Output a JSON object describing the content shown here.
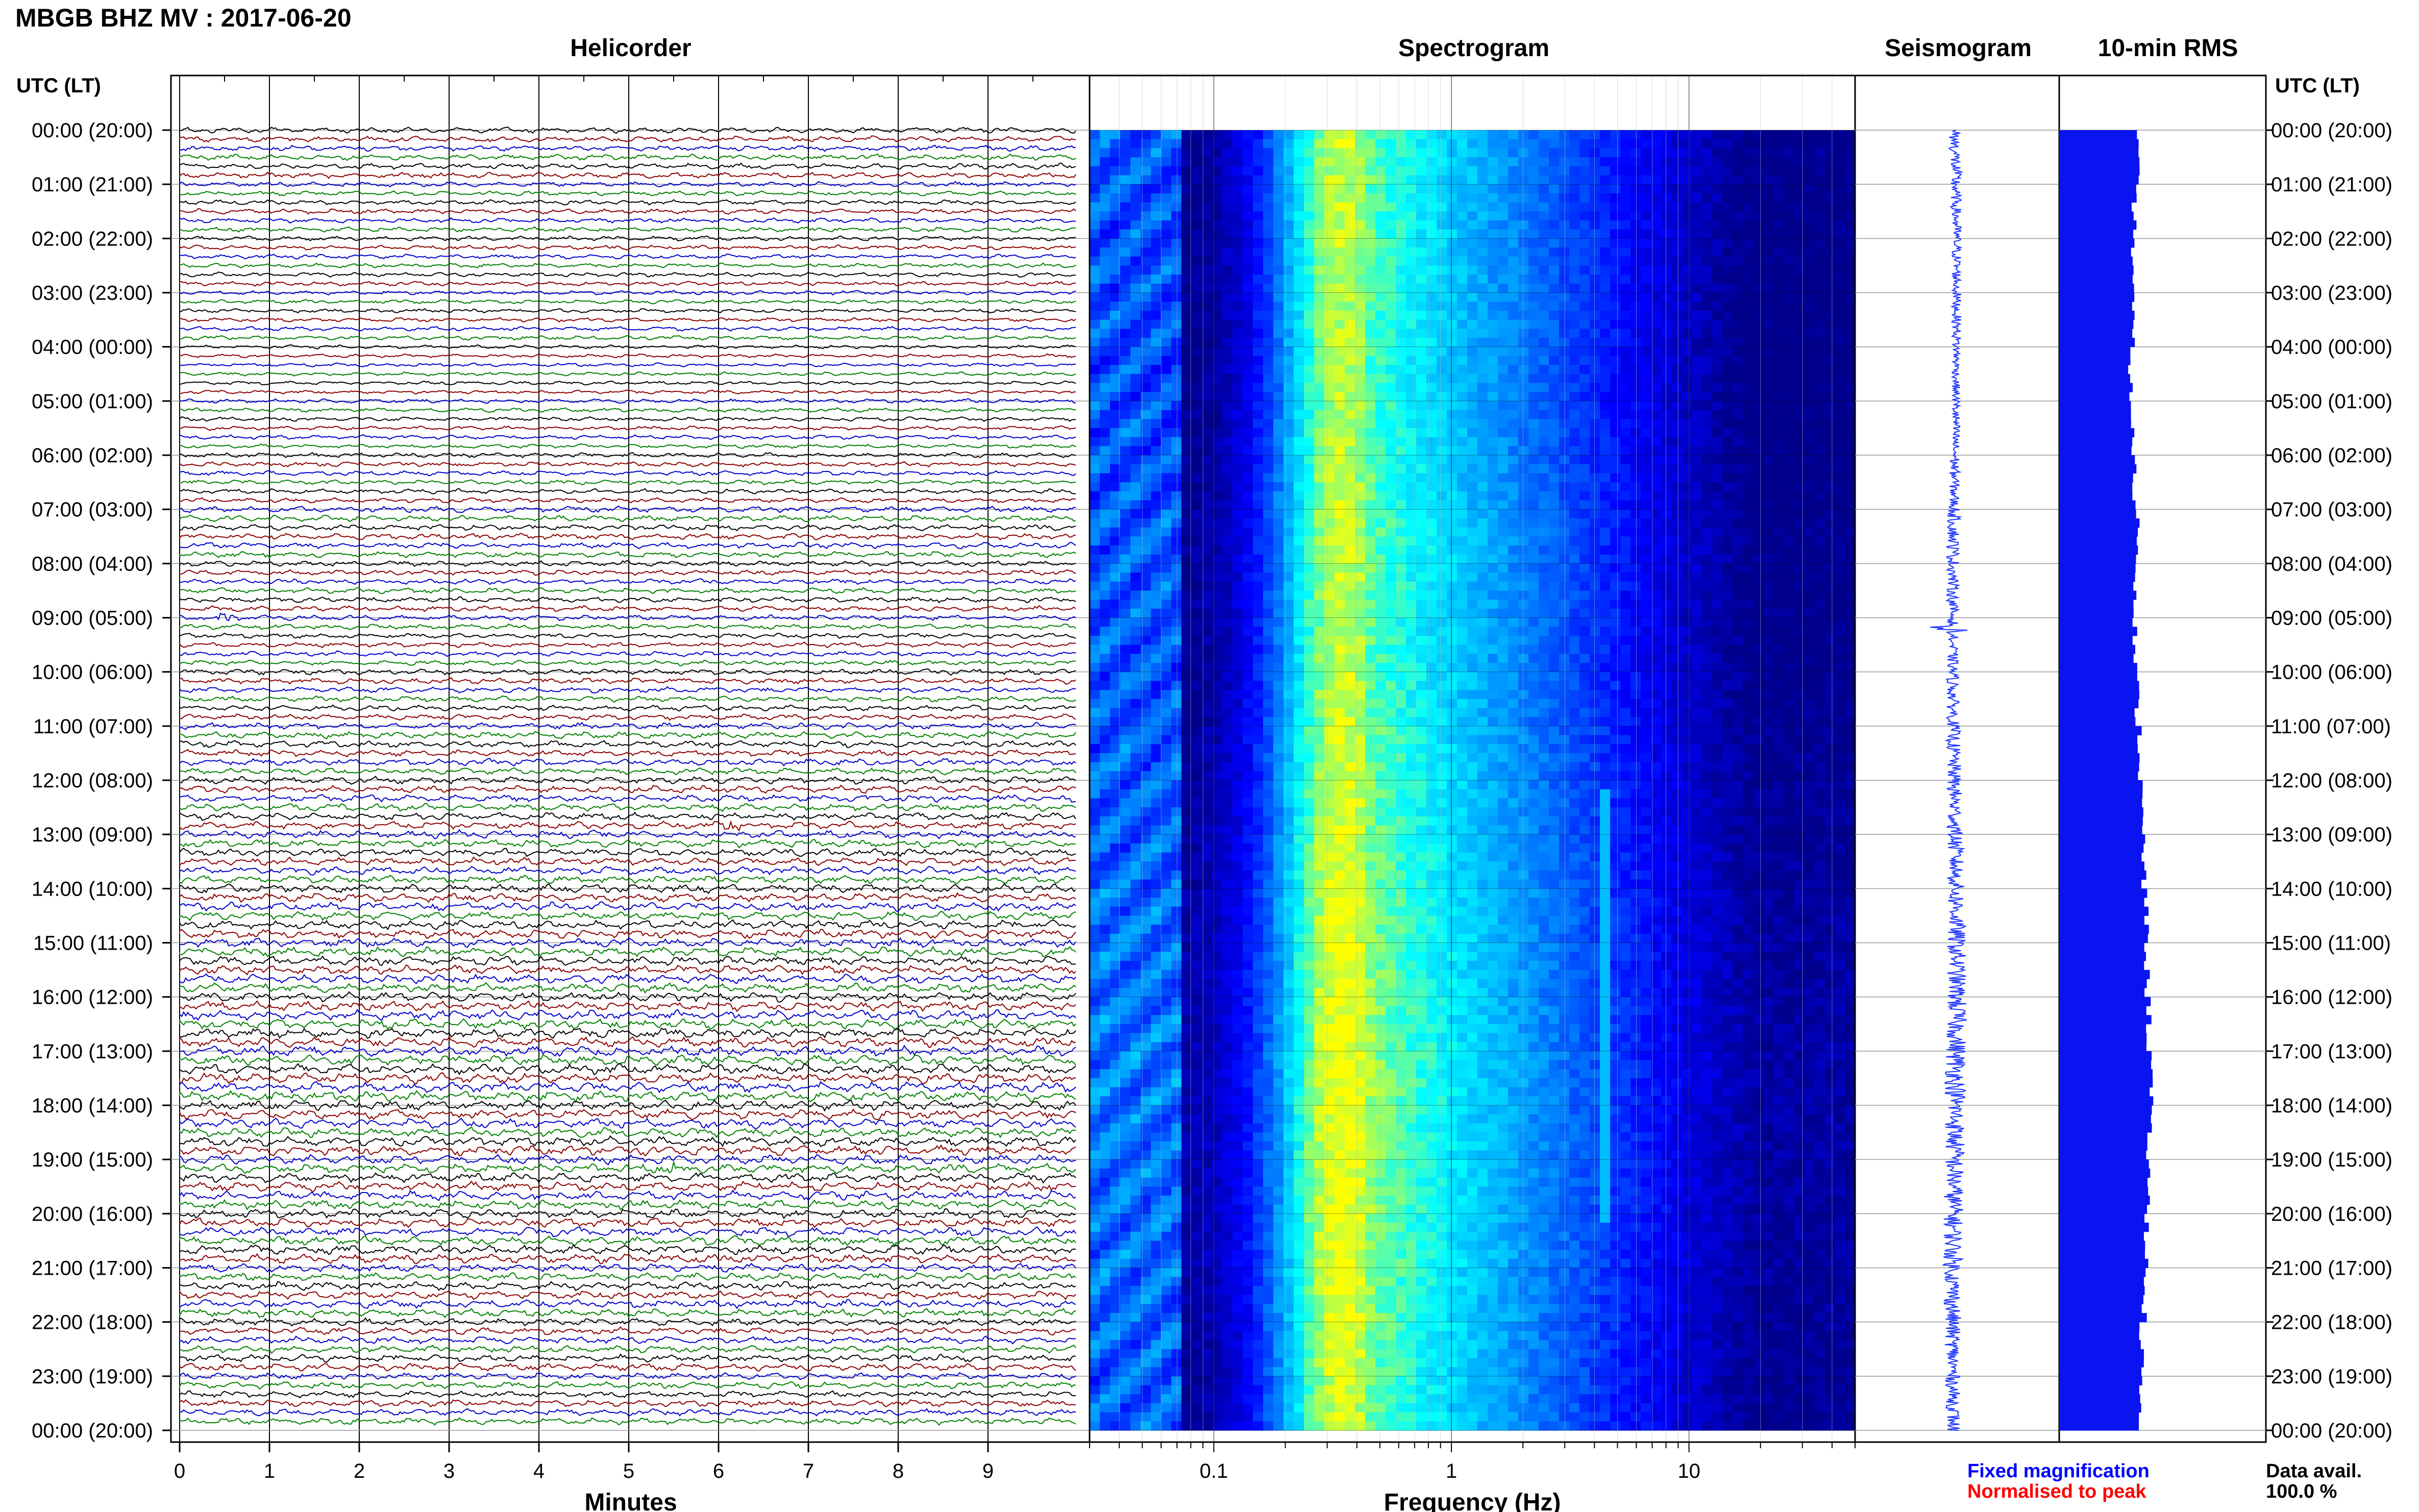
{
  "figure": {
    "title": "MBGB BHZ MV : 2017-06-20",
    "panel_titles": {
      "helicorder": "Helicorder",
      "spectrogram": "Spectrogram",
      "seismogram": "Seismogram",
      "rms": "10-min RMS"
    },
    "time_axis_label_left": "UTC (LT)",
    "time_axis_label_right": "UTC (LT)",
    "time_labels": [
      "00:00 (20:00)",
      "01:00 (21:00)",
      "02:00 (22:00)",
      "03:00 (23:00)",
      "04:00 (00:00)",
      "05:00 (01:00)",
      "06:00 (02:00)",
      "07:00 (03:00)",
      "08:00 (04:00)",
      "09:00 (05:00)",
      "10:00 (06:00)",
      "11:00 (07:00)",
      "12:00 (08:00)",
      "13:00 (09:00)",
      "14:00 (10:00)",
      "15:00 (11:00)",
      "16:00 (12:00)",
      "17:00 (13:00)",
      "18:00 (14:00)",
      "19:00 (15:00)",
      "20:00 (16:00)",
      "21:00 (17:00)",
      "22:00 (18:00)",
      "23:00 (19:00)",
      "00:00 (20:00)"
    ],
    "helicorder_xlabel": "Minutes",
    "helicorder_xticks": [
      "0",
      "1",
      "2",
      "3",
      "4",
      "5",
      "6",
      "7",
      "8",
      "9"
    ],
    "spectrogram_xlabel": "Frequency (Hz)",
    "spectrogram_xticks": [
      "0.1",
      "1",
      "10"
    ],
    "legend": {
      "fixed": "Fixed magnification",
      "normalised": "Normalised to peak"
    },
    "data_avail_label": "Data avail.",
    "data_avail_value": "100.0 %",
    "colors": {
      "trace_cycle": [
        "#000000",
        "#8b0000",
        "#0000cc",
        "#008000"
      ],
      "fixed": "#0000ff",
      "normalised": "#ff0000",
      "rms_fill": "#0a14f0",
      "seismogram": "#1a33ff",
      "spectrogram_ramp": [
        "#00008b",
        "#0000ff",
        "#0080ff",
        "#00ffff",
        "#ffff00"
      ]
    }
  },
  "chart_data": [
    {
      "type": "line",
      "name": "helicorder",
      "x_unit": "minutes",
      "xlim": [
        0,
        10
      ],
      "rows_per_hour": 6,
      "rows": 144,
      "hours": 24,
      "events_minutes": [
        {
          "hour": 9.05,
          "minute": 0.5
        },
        {
          "hour": 12.9,
          "minute": 6.1
        },
        {
          "hour": 19.1,
          "minute": 5.5
        }
      ]
    },
    {
      "type": "heatmap",
      "name": "spectrogram",
      "x_scale": "log",
      "xlim_hz": [
        0.03,
        50
      ],
      "hours": 24,
      "band_centres_hz": {
        "microseism_peak": 0.35,
        "low_floor": 0.05
      },
      "tremor_line_hz": 4.5,
      "tremor_hours": [
        12.1,
        20.0
      ]
    },
    {
      "type": "line",
      "name": "seismogram",
      "hours": 24,
      "spike_hour": 9.2
    },
    {
      "type": "bar",
      "name": "10-min RMS",
      "hours": 24,
      "bars": 144,
      "hourly_level": [
        0.85,
        0.82,
        0.81,
        0.8,
        0.78,
        0.8,
        0.82,
        0.86,
        0.84,
        0.83,
        0.85,
        0.88,
        0.9,
        0.92,
        0.95,
        0.96,
        0.98,
        1.0,
        0.98,
        0.97,
        0.96,
        0.93,
        0.9,
        0.88
      ]
    }
  ]
}
